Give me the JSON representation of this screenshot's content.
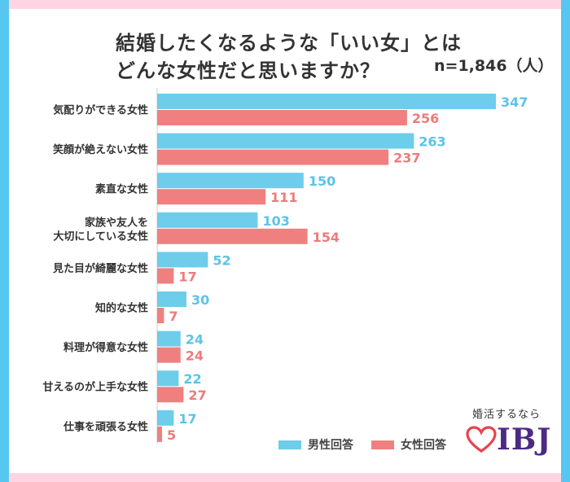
{
  "title_line1": "結婚したくなるような「いい女」とは",
  "title_line2": "どんな女性だと思いますか？",
  "sample_size": "n=1,846（人）",
  "legend": {
    "male": "男性回答",
    "female": "女性回答"
  },
  "brand": {
    "tagline": "婚活するなら",
    "logo_text": "IBJ"
  },
  "colors": {
    "male": "#6dcdeb",
    "female": "#f08080",
    "male_label": "#5cc3e8",
    "female_label": "#ef7a7a",
    "border": "#55c7f0",
    "band": "#ffd5e4",
    "logo": "#4c2a83",
    "heart": "#e8434b"
  },
  "chart_data": {
    "type": "bar",
    "orientation": "horizontal",
    "categories": [
      "気配りができる女性",
      "笑顔が絶えない女性",
      "素直な女性",
      "家族や友人を\n大切にしている女性",
      "見た目が綺麗な女性",
      "知的な女性",
      "料理が得意な女性",
      "甘えるのが上手な女性",
      "仕事を頑張る女性"
    ],
    "series": [
      {
        "name": "男性回答",
        "values": [
          347,
          263,
          150,
          103,
          52,
          30,
          24,
          22,
          17
        ]
      },
      {
        "name": "女性回答",
        "values": [
          256,
          237,
          111,
          154,
          17,
          7,
          24,
          27,
          5
        ]
      }
    ],
    "xlim": [
      0,
      347
    ],
    "grid": false,
    "legend_position": "bottom-right",
    "data_labels": true
  }
}
